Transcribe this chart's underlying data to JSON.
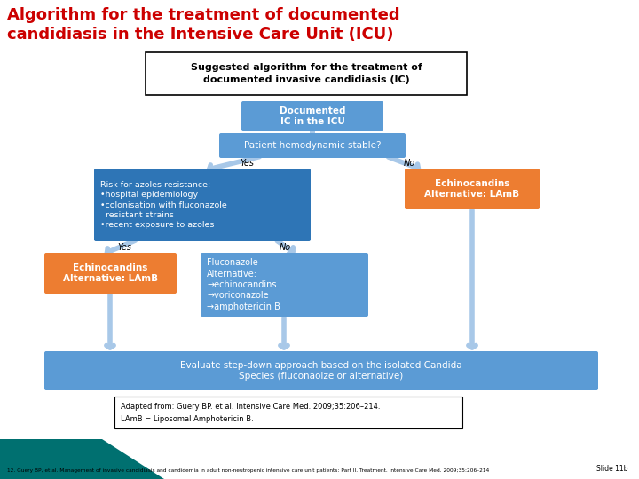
{
  "title_line1": "Algorithm for the treatment of documented",
  "title_line2": "candidiasis in the Intensive Care Unit (ICU)",
  "title_color": "#cc0000",
  "background_color": "#ffffff",
  "subtitle_box_text": "Suggested algorithm for the treatment of\ndocumented invasive candidiasis (IC)",
  "box1_text": "Documented\nIC in the ICU",
  "box1_color": "#5b9bd5",
  "box2_text": "Patient hemodynamic stable?",
  "box2_color": "#5b9bd5",
  "box3_text": "Risk for azoles resistance:\n•hospital epidemiology\n•colonisation with fluconazole\n  resistant strains\n•recent exposure to azoles",
  "box3_color": "#2e75b6",
  "box4_text": "Echinocandins\nAlternative: LAmB",
  "box4_color": "#ed7d31",
  "box5_text": "Echinocandins\nAlternative: LAmB",
  "box5_color": "#ed7d31",
  "box6_text": "Fluconazole\nAlternative:\n→echinocandins\n→voriconazole\n→amphotericin B",
  "box6_color": "#5b9bd5",
  "box7_text": "Evaluate step-down approach based on the isolated Candida\nSpecies (fluconaolze or alternative)",
  "box7_color": "#5b9bd5",
  "footnote1": "Adapted from: Guery BP. et al. Intensive Care Med. 2009;35:206–214.",
  "footnote2": "LAmB = Liposomal Amphotericin B.",
  "bottom_text": "12. Guery BP, et al. Management of invasive candidiasis and candidemia in adult non-neutropenic intensive care unit patients: Part II. Treatment. Intensive Care Med. 2009;35:206–214",
  "slide_label": "Slide 11b",
  "arrow_color": "#a8c8e8",
  "yes_no_color": "#000000",
  "teal_color": "#007070"
}
